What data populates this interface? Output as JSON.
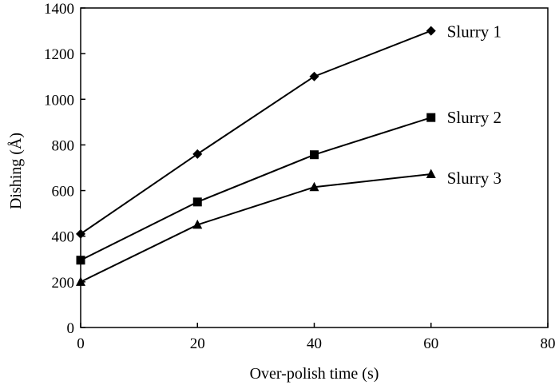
{
  "chart_data": {
    "type": "line",
    "title": "",
    "xlabel": "Over-polish time (s)",
    "ylabel": "Dishing (Å)",
    "xlim": [
      0,
      80
    ],
    "ylim": [
      0,
      1400
    ],
    "x_ticks": [
      0,
      20,
      40,
      60,
      80
    ],
    "y_ticks": [
      0,
      200,
      400,
      600,
      800,
      1000,
      1200,
      1400
    ],
    "grid": false,
    "legend": "inline labels at line ends",
    "series": [
      {
        "name": "Slurry 1",
        "marker": "diamond",
        "x": [
          0,
          20,
          40,
          60
        ],
        "y": [
          410,
          760,
          1100,
          1300
        ]
      },
      {
        "name": "Slurry 2",
        "marker": "square",
        "x": [
          0,
          20,
          40,
          60
        ],
        "y": [
          295,
          550,
          757,
          920
        ]
      },
      {
        "name": "Slurry 3",
        "marker": "triangle",
        "x": [
          0,
          20,
          40,
          60
        ],
        "y": [
          200,
          450,
          615,
          672
        ]
      }
    ],
    "colors": {
      "line": "#000000",
      "axis": "#000000"
    }
  }
}
